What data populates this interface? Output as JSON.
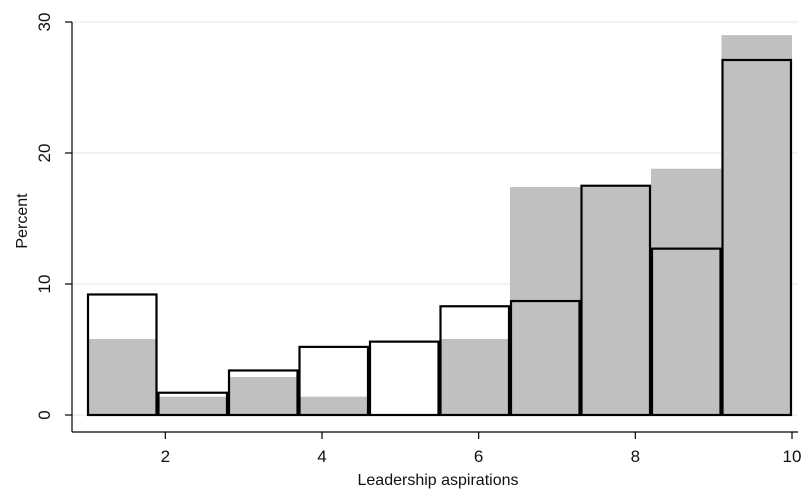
{
  "chart_data": {
    "type": "bar",
    "subtype": "overlaid-histogram",
    "xlabel": "Leadership aspirations",
    "ylabel": "Percent",
    "xlim": [
      1,
      10
    ],
    "ylim": [
      0,
      30
    ],
    "x_ticks": [
      "2",
      "4",
      "6",
      "8",
      "10"
    ],
    "y_ticks": [
      "0",
      "10",
      "20",
      "30"
    ],
    "grid": true,
    "legend": "none",
    "bins": [
      {
        "start": 1.0,
        "end": 1.9
      },
      {
        "start": 1.9,
        "end": 2.8
      },
      {
        "start": 2.8,
        "end": 3.7
      },
      {
        "start": 3.7,
        "end": 4.6
      },
      {
        "start": 4.6,
        "end": 5.5
      },
      {
        "start": 5.5,
        "end": 6.4
      },
      {
        "start": 6.4,
        "end": 7.3
      },
      {
        "start": 7.3,
        "end": 8.2
      },
      {
        "start": 8.2,
        "end": 9.1
      },
      {
        "start": 9.1,
        "end": 10.0
      }
    ],
    "series": [
      {
        "style": "filled",
        "color": "#c0c0c0",
        "values": [
          5.8,
          1.4,
          2.9,
          1.4,
          0.0,
          5.8,
          17.4,
          17.4,
          18.8,
          29.0
        ]
      },
      {
        "style": "outline",
        "color": "#000000",
        "values": [
          9.2,
          1.7,
          3.4,
          5.2,
          5.6,
          8.3,
          8.7,
          17.5,
          12.7,
          27.1
        ]
      }
    ]
  }
}
